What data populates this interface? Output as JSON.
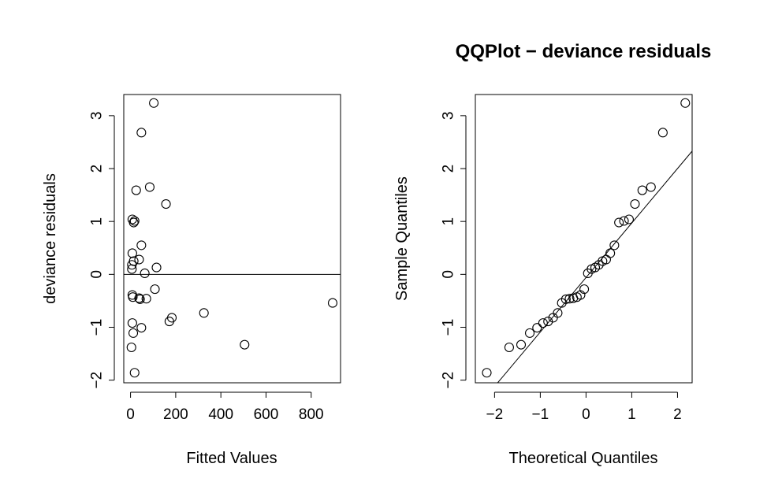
{
  "chart_data": [
    {
      "type": "scatter",
      "title": "",
      "xlabel": "Fitted Values",
      "ylabel": "deviance residuals",
      "xlim": [
        -30,
        930
      ],
      "ylim": [
        -2.05,
        3.4
      ],
      "xticks": [
        0,
        200,
        400,
        600,
        800
      ],
      "yticks": [
        -2,
        -1,
        0,
        1,
        2,
        3
      ],
      "hline": 0,
      "points": [
        [
          103,
          3.24
        ],
        [
          48,
          2.68
        ],
        [
          85,
          1.65
        ],
        [
          25,
          1.59
        ],
        [
          157,
          1.33
        ],
        [
          8,
          1.04
        ],
        [
          18,
          1.01
        ],
        [
          14,
          0.98
        ],
        [
          48,
          0.55
        ],
        [
          8,
          0.4
        ],
        [
          38,
          0.28
        ],
        [
          14,
          0.25
        ],
        [
          6,
          0.18
        ],
        [
          115,
          0.13
        ],
        [
          6,
          0.1
        ],
        [
          63,
          0.02
        ],
        [
          108,
          -0.28
        ],
        [
          8,
          -0.39
        ],
        [
          10,
          -0.43
        ],
        [
          38,
          -0.45
        ],
        [
          42,
          -0.47
        ],
        [
          70,
          -0.46
        ],
        [
          895,
          -0.54
        ],
        [
          325,
          -0.73
        ],
        [
          183,
          -0.82
        ],
        [
          172,
          -0.89
        ],
        [
          8,
          -0.92
        ],
        [
          48,
          -1.01
        ],
        [
          12,
          -1.11
        ],
        [
          505,
          -1.33
        ],
        [
          4,
          -1.38
        ],
        [
          18,
          -1.86
        ]
      ]
    },
    {
      "type": "scatter",
      "title": "QQPlot − deviance residuals",
      "xlabel": "Theoretical Quantiles",
      "ylabel": "Sample Quantiles",
      "xlim": [
        -2.42,
        2.32
      ],
      "ylim": [
        -2.05,
        3.4
      ],
      "xticks": [
        -2,
        -1,
        0,
        1,
        2
      ],
      "yticks": [
        -2,
        -1,
        0,
        1,
        2,
        3
      ],
      "reference_line": {
        "intercept": -0.06,
        "slope": 1.03
      },
      "points": [
        [
          -2.17,
          -1.86
        ],
        [
          -1.68,
          -1.38
        ],
        [
          -1.42,
          -1.33
        ],
        [
          -1.23,
          -1.11
        ],
        [
          -1.07,
          -1.01
        ],
        [
          -0.94,
          -0.92
        ],
        [
          -0.83,
          -0.89
        ],
        [
          -0.72,
          -0.82
        ],
        [
          -0.62,
          -0.73
        ],
        [
          -0.53,
          -0.54
        ],
        [
          -0.44,
          -0.47
        ],
        [
          -0.36,
          -0.46
        ],
        [
          -0.28,
          -0.45
        ],
        [
          -0.2,
          -0.43
        ],
        [
          -0.12,
          -0.39
        ],
        [
          -0.04,
          -0.28
        ],
        [
          0.04,
          0.02
        ],
        [
          0.12,
          0.1
        ],
        [
          0.2,
          0.13
        ],
        [
          0.28,
          0.18
        ],
        [
          0.36,
          0.25
        ],
        [
          0.44,
          0.28
        ],
        [
          0.53,
          0.4
        ],
        [
          0.62,
          0.55
        ],
        [
          0.72,
          0.98
        ],
        [
          0.83,
          1.01
        ],
        [
          0.94,
          1.04
        ],
        [
          1.07,
          1.33
        ],
        [
          1.23,
          1.59
        ],
        [
          1.42,
          1.65
        ],
        [
          1.68,
          2.68
        ],
        [
          2.17,
          3.24
        ]
      ]
    }
  ]
}
